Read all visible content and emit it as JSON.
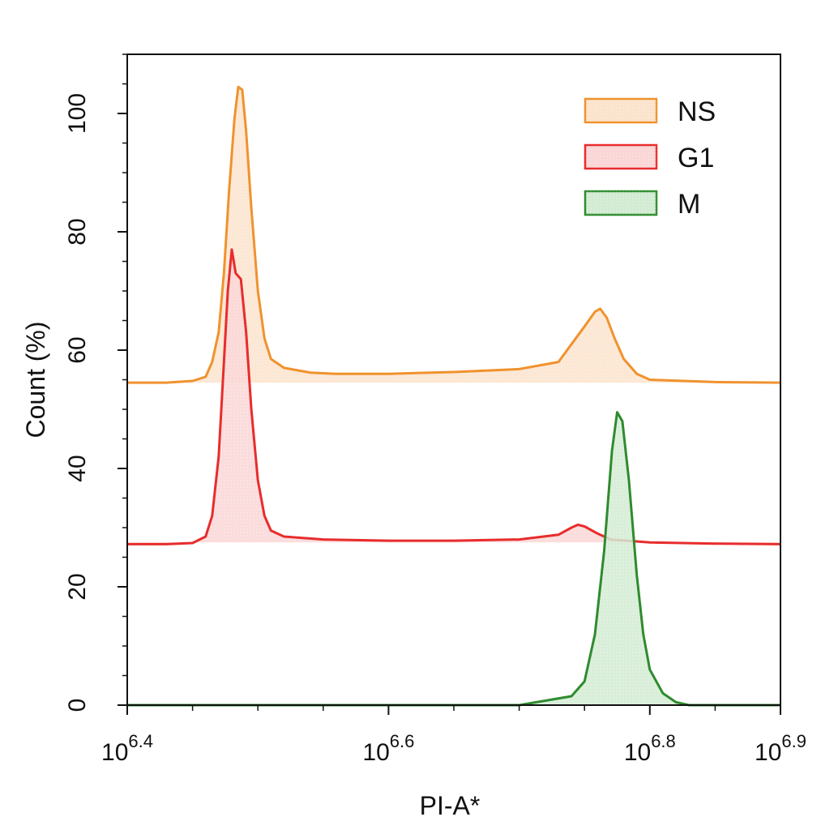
{
  "chart_data": {
    "type": "area",
    "title": "",
    "xlabel": "PI-A*",
    "ylabel": "Count (%)",
    "x_scale": "log10",
    "xlim_exponent": [
      6.4,
      6.9
    ],
    "ylim": [
      0,
      110
    ],
    "x_ticks": [
      {
        "base": "10",
        "exp": "6.4",
        "value": 6.4
      },
      {
        "base": "10",
        "exp": "6.6",
        "value": 6.6
      },
      {
        "base": "10",
        "exp": "6.8",
        "value": 6.8
      },
      {
        "base": "10",
        "exp": "6.9",
        "value": 6.9
      }
    ],
    "y_ticks": [
      {
        "label": "0",
        "value": 0
      },
      {
        "label": "20",
        "value": 20
      },
      {
        "label": "40",
        "value": 40
      },
      {
        "label": "60",
        "value": 60
      },
      {
        "label": "80",
        "value": 80
      },
      {
        "label": "100",
        "value": 100
      }
    ],
    "grid": false,
    "legend_position": "top-right",
    "series": [
      {
        "name": "NS",
        "color": "#f0922e",
        "fill": "#fbe3cc",
        "offset": 54.5,
        "points": [
          [
            6.4,
            54.5
          ],
          [
            6.43,
            54.5
          ],
          [
            6.45,
            54.8
          ],
          [
            6.46,
            55.5
          ],
          [
            6.465,
            58
          ],
          [
            6.47,
            63
          ],
          [
            6.474,
            73
          ],
          [
            6.478,
            87
          ],
          [
            6.482,
            99
          ],
          [
            6.485,
            104.5
          ],
          [
            6.488,
            104
          ],
          [
            6.491,
            97
          ],
          [
            6.495,
            84
          ],
          [
            6.5,
            70
          ],
          [
            6.505,
            62
          ],
          [
            6.51,
            58.5
          ],
          [
            6.52,
            57
          ],
          [
            6.54,
            56.2
          ],
          [
            6.56,
            56
          ],
          [
            6.6,
            56
          ],
          [
            6.65,
            56.3
          ],
          [
            6.7,
            56.8
          ],
          [
            6.73,
            58
          ],
          [
            6.74,
            61
          ],
          [
            6.75,
            64
          ],
          [
            6.758,
            66.5
          ],
          [
            6.762,
            67
          ],
          [
            6.767,
            65.5
          ],
          [
            6.773,
            62
          ],
          [
            6.78,
            58.5
          ],
          [
            6.79,
            56
          ],
          [
            6.8,
            55
          ],
          [
            6.85,
            54.6
          ],
          [
            6.9,
            54.5
          ]
        ]
      },
      {
        "name": "G1",
        "color": "#e82c2c",
        "fill": "#fad6d6",
        "offset": 27.5,
        "points": [
          [
            6.4,
            27.2
          ],
          [
            6.43,
            27.2
          ],
          [
            6.45,
            27.4
          ],
          [
            6.46,
            28.5
          ],
          [
            6.465,
            32
          ],
          [
            6.47,
            42
          ],
          [
            6.474,
            58
          ],
          [
            6.477,
            70
          ],
          [
            6.48,
            77
          ],
          [
            6.483,
            73
          ],
          [
            6.487,
            72
          ],
          [
            6.491,
            63
          ],
          [
            6.495,
            50
          ],
          [
            6.5,
            38
          ],
          [
            6.505,
            32
          ],
          [
            6.51,
            29.5
          ],
          [
            6.52,
            28.5
          ],
          [
            6.55,
            28
          ],
          [
            6.6,
            27.8
          ],
          [
            6.65,
            27.8
          ],
          [
            6.7,
            28
          ],
          [
            6.73,
            28.8
          ],
          [
            6.74,
            30
          ],
          [
            6.745,
            30.5
          ],
          [
            6.75,
            30.2
          ],
          [
            6.76,
            29
          ],
          [
            6.77,
            28
          ],
          [
            6.8,
            27.5
          ],
          [
            6.85,
            27.3
          ],
          [
            6.9,
            27.2
          ]
        ]
      },
      {
        "name": "M",
        "color": "#2e8b2e",
        "fill": "#d2ebd2",
        "offset": 0,
        "points": [
          [
            6.4,
            0
          ],
          [
            6.5,
            0
          ],
          [
            6.6,
            0
          ],
          [
            6.7,
            0
          ],
          [
            6.74,
            1.5
          ],
          [
            6.75,
            4
          ],
          [
            6.758,
            12
          ],
          [
            6.765,
            26
          ],
          [
            6.771,
            43
          ],
          [
            6.775,
            49.5
          ],
          [
            6.779,
            48
          ],
          [
            6.784,
            38
          ],
          [
            6.79,
            22
          ],
          [
            6.795,
            12
          ],
          [
            6.8,
            6
          ],
          [
            6.81,
            2
          ],
          [
            6.82,
            0.5
          ],
          [
            6.83,
            0
          ],
          [
            6.9,
            0
          ]
        ]
      }
    ]
  }
}
